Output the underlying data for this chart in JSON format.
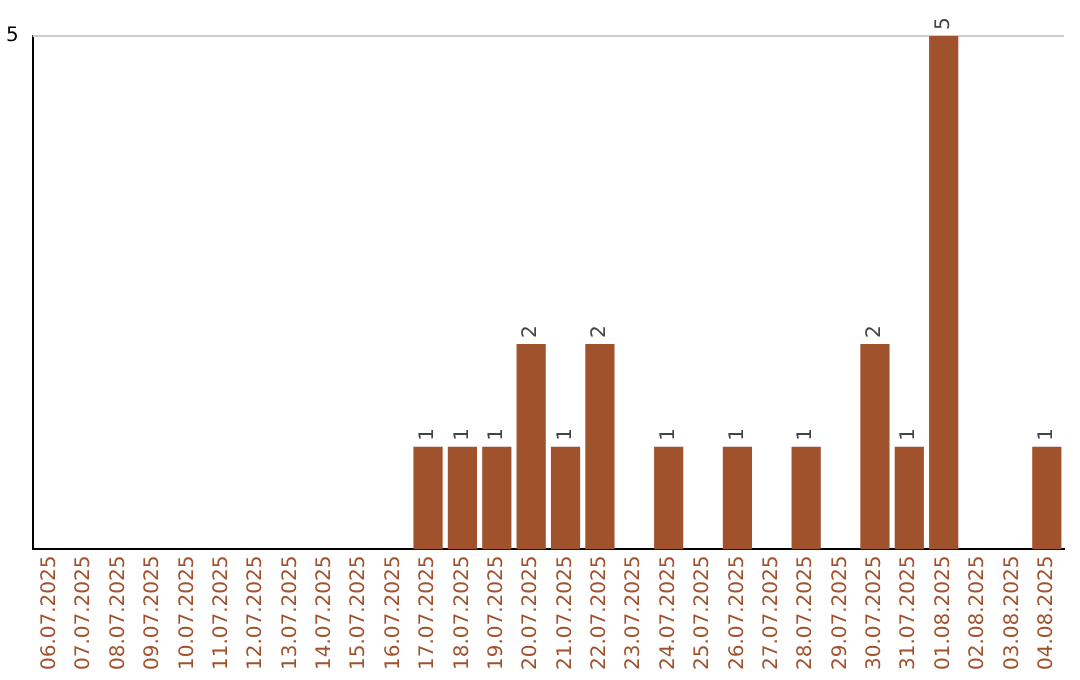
{
  "chart_data": {
    "type": "bar",
    "categories": [
      "06.07.2025",
      "07.07.2025",
      "08.07.2025",
      "09.07.2025",
      "10.07.2025",
      "11.07.2025",
      "12.07.2025",
      "13.07.2025",
      "14.07.2025",
      "15.07.2025",
      "16.07.2025",
      "17.07.2025",
      "18.07.2025",
      "19.07.2025",
      "20.07.2025",
      "21.07.2025",
      "22.07.2025",
      "23.07.2025",
      "24.07.2025",
      "25.07.2025",
      "26.07.2025",
      "27.07.2025",
      "28.07.2025",
      "29.07.2025",
      "30.07.2025",
      "31.07.2025",
      "01.08.2025",
      "02.08.2025",
      "03.08.2025",
      "04.08.2025"
    ],
    "values": [
      0,
      0,
      0,
      0,
      0,
      0,
      0,
      0,
      0,
      0,
      0,
      1,
      1,
      1,
      2,
      1,
      2,
      0,
      1,
      0,
      1,
      0,
      1,
      0,
      2,
      1,
      5,
      0,
      0,
      1
    ],
    "value_labels": [
      null,
      null,
      null,
      null,
      null,
      null,
      null,
      null,
      null,
      null,
      null,
      "1",
      "1",
      "1",
      "2",
      "1",
      "2",
      null,
      "1",
      null,
      "1",
      null,
      "1",
      null,
      "2",
      "1",
      "5",
      null,
      null,
      "1"
    ],
    "color": "#a0522d",
    "ylim": [
      0,
      5
    ],
    "yticks": [
      5
    ],
    "ref_lines": [
      {
        "axis": "y",
        "value": 5,
        "color": "#cccccc"
      }
    ],
    "legend": false
  }
}
